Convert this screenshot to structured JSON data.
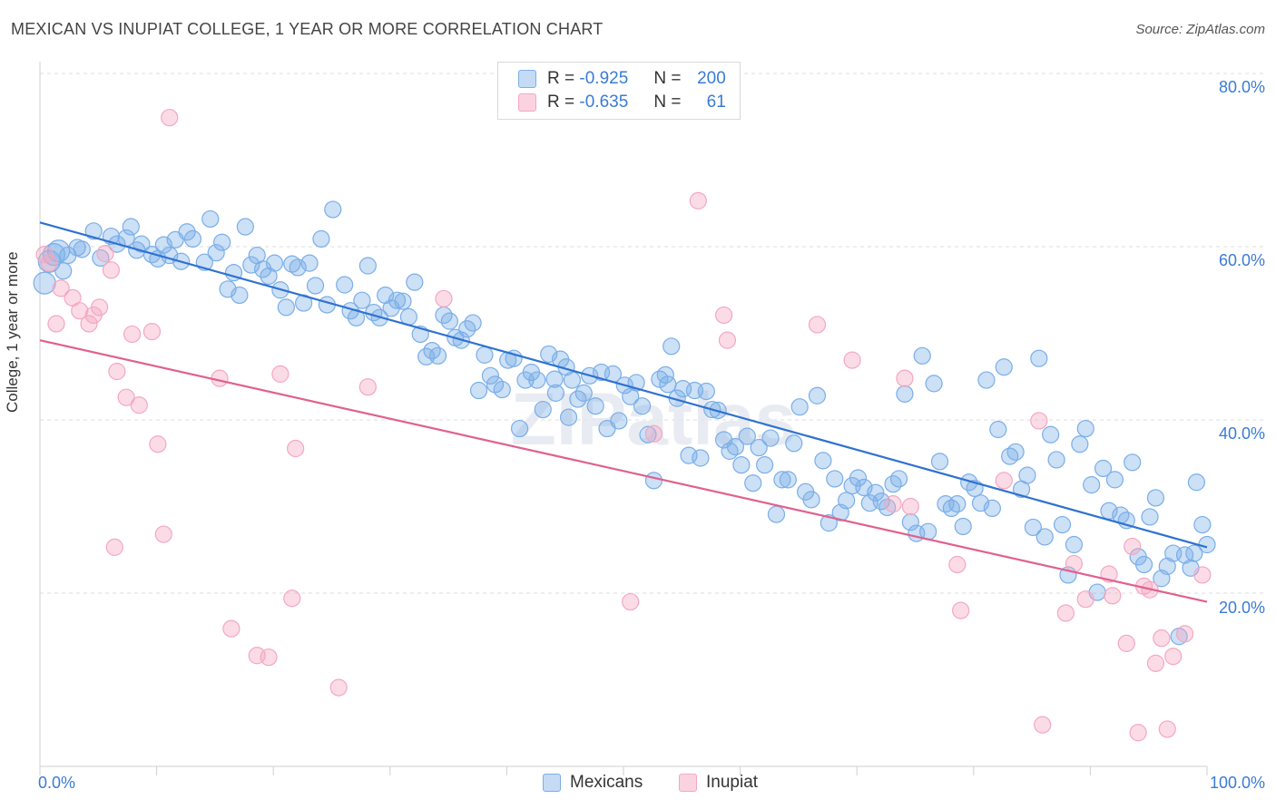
{
  "title": "MEXICAN VS INUPIAT COLLEGE, 1 YEAR OR MORE CORRELATION CHART",
  "source": "Source: ZipAtlas.com",
  "watermark": "ZIPatlas",
  "legend": {
    "mexicans": {
      "r_label": "R =",
      "r_value": "-0.925",
      "n_label": "N =",
      "n_value": "200"
    },
    "inupiat": {
      "r_label": "R =",
      "r_value": "-0.635",
      "n_label": "N =",
      "n_value": "61"
    }
  },
  "bottom_legend": {
    "mexicans": "Mexicans",
    "inupiat": "Inupiat"
  },
  "chart_data": {
    "type": "scatter",
    "title": "MEXICAN VS INUPIAT COLLEGE, 1 YEAR OR MORE CORRELATION CHART",
    "xlabel": "",
    "ylabel": "College, 1 year or more",
    "xlim": [
      0,
      100
    ],
    "ylim": [
      0,
      82
    ],
    "x_tick_labels": [
      "0.0%",
      "100.0%"
    ],
    "y_ticks": [
      20,
      40,
      60,
      80
    ],
    "y_tick_labels": [
      "20.0%",
      "40.0%",
      "60.0%",
      "80.0%"
    ],
    "grid": true,
    "colors": {
      "mexicans": "#7aaee8",
      "mexicans_line": "#2f72d0",
      "inupiat": "#f4a7c0",
      "inupiat_line": "#e0608f"
    },
    "series": [
      {
        "name": "Mexicans",
        "trend": {
          "x": [
            0,
            100
          ],
          "y": [
            62.8,
            25.3
          ]
        },
        "points": [
          [
            0.4,
            55.8
          ],
          [
            0.8,
            58.3
          ],
          [
            1.2,
            59.1
          ],
          [
            1.6,
            59.5
          ],
          [
            2.0,
            57.2
          ],
          [
            2.4,
            59.0
          ],
          [
            3.2,
            59.9
          ],
          [
            3.6,
            59.7
          ],
          [
            4.6,
            61.8
          ],
          [
            5.2,
            58.7
          ],
          [
            6.1,
            61.2
          ],
          [
            6.6,
            60.3
          ],
          [
            7.4,
            61.0
          ],
          [
            7.8,
            62.3
          ],
          [
            8.3,
            59.6
          ],
          [
            8.7,
            60.3
          ],
          [
            9.6,
            59.1
          ],
          [
            10.1,
            58.6
          ],
          [
            10.6,
            60.2
          ],
          [
            11.1,
            59.0
          ],
          [
            11.6,
            60.8
          ],
          [
            12.1,
            58.3
          ],
          [
            12.6,
            61.7
          ],
          [
            13.1,
            60.9
          ],
          [
            14.1,
            58.2
          ],
          [
            14.6,
            63.2
          ],
          [
            15.1,
            59.3
          ],
          [
            15.6,
            60.5
          ],
          [
            16.1,
            55.1
          ],
          [
            16.6,
            57.0
          ],
          [
            17.1,
            54.4
          ],
          [
            17.6,
            62.3
          ],
          [
            18.1,
            57.9
          ],
          [
            18.6,
            59.0
          ],
          [
            19.1,
            57.4
          ],
          [
            19.6,
            56.6
          ],
          [
            20.1,
            58.1
          ],
          [
            20.6,
            55.0
          ],
          [
            21.1,
            53.0
          ],
          [
            21.6,
            58.0
          ],
          [
            22.1,
            57.6
          ],
          [
            22.6,
            53.5
          ],
          [
            23.1,
            58.1
          ],
          [
            23.6,
            55.5
          ],
          [
            24.1,
            60.9
          ],
          [
            25.1,
            64.3
          ],
          [
            24.6,
            53.3
          ],
          [
            26.1,
            55.6
          ],
          [
            26.6,
            52.6
          ],
          [
            27.1,
            51.8
          ],
          [
            27.6,
            53.8
          ],
          [
            28.1,
            57.8
          ],
          [
            28.6,
            52.4
          ],
          [
            29.1,
            51.8
          ],
          [
            29.6,
            54.4
          ],
          [
            30.1,
            52.9
          ],
          [
            30.6,
            53.8
          ],
          [
            31.1,
            53.7
          ],
          [
            31.6,
            51.9
          ],
          [
            32.1,
            55.9
          ],
          [
            32.6,
            49.9
          ],
          [
            33.1,
            47.3
          ],
          [
            33.6,
            48.0
          ],
          [
            34.1,
            47.4
          ],
          [
            34.6,
            52.1
          ],
          [
            35.1,
            51.4
          ],
          [
            35.6,
            49.5
          ],
          [
            36.1,
            49.2
          ],
          [
            36.6,
            50.5
          ],
          [
            37.1,
            51.2
          ],
          [
            37.6,
            43.4
          ],
          [
            38.1,
            47.5
          ],
          [
            38.6,
            45.1
          ],
          [
            39.6,
            43.5
          ],
          [
            40.1,
            46.9
          ],
          [
            40.6,
            47.1
          ],
          [
            41.1,
            39.0
          ],
          [
            41.6,
            44.6
          ],
          [
            42.1,
            45.5
          ],
          [
            42.6,
            44.6
          ],
          [
            43.1,
            41.2
          ],
          [
            43.6,
            47.6
          ],
          [
            44.1,
            44.7
          ],
          [
            44.6,
            47.0
          ],
          [
            45.1,
            46.1
          ],
          [
            45.6,
            44.6
          ],
          [
            46.1,
            42.4
          ],
          [
            46.6,
            43.1
          ],
          [
            47.1,
            45.1
          ],
          [
            47.6,
            41.6
          ],
          [
            48.1,
            45.5
          ],
          [
            48.6,
            39.0
          ],
          [
            49.1,
            45.3
          ],
          [
            49.6,
            39.9
          ],
          [
            50.1,
            44.0
          ],
          [
            50.6,
            42.7
          ],
          [
            51.1,
            44.3
          ],
          [
            51.6,
            41.6
          ],
          [
            52.1,
            38.3
          ],
          [
            52.6,
            33.0
          ],
          [
            53.1,
            44.7
          ],
          [
            53.6,
            45.2
          ],
          [
            54.1,
            48.5
          ],
          [
            54.6,
            42.5
          ],
          [
            55.1,
            43.6
          ],
          [
            55.6,
            35.9
          ],
          [
            56.1,
            43.4
          ],
          [
            56.6,
            35.6
          ],
          [
            57.1,
            43.3
          ],
          [
            57.6,
            41.2
          ],
          [
            58.1,
            41.1
          ],
          [
            58.6,
            37.7
          ],
          [
            59.1,
            36.4
          ],
          [
            59.6,
            36.9
          ],
          [
            60.1,
            34.8
          ],
          [
            60.6,
            38.1
          ],
          [
            61.1,
            32.7
          ],
          [
            61.6,
            36.8
          ],
          [
            62.1,
            34.8
          ],
          [
            62.6,
            37.9
          ],
          [
            63.1,
            29.1
          ],
          [
            63.6,
            33.1
          ],
          [
            64.1,
            33.1
          ],
          [
            64.6,
            37.3
          ],
          [
            65.1,
            41.5
          ],
          [
            65.6,
            31.7
          ],
          [
            66.1,
            30.8
          ],
          [
            66.6,
            42.8
          ],
          [
            67.1,
            35.3
          ],
          [
            67.6,
            28.1
          ],
          [
            68.1,
            33.2
          ],
          [
            68.6,
            29.3
          ],
          [
            69.1,
            30.7
          ],
          [
            69.6,
            32.4
          ],
          [
            70.1,
            33.3
          ],
          [
            70.6,
            32.2
          ],
          [
            71.1,
            30.4
          ],
          [
            71.6,
            31.6
          ],
          [
            72.1,
            30.6
          ],
          [
            72.6,
            29.9
          ],
          [
            73.1,
            32.6
          ],
          [
            73.6,
            33.2
          ],
          [
            74.1,
            43.0
          ],
          [
            74.6,
            28.2
          ],
          [
            75.1,
            26.9
          ],
          [
            75.6,
            47.4
          ],
          [
            76.1,
            27.1
          ],
          [
            76.6,
            44.2
          ],
          [
            77.1,
            35.2
          ],
          [
            77.6,
            30.3
          ],
          [
            78.1,
            29.8
          ],
          [
            78.6,
            30.3
          ],
          [
            79.1,
            27.7
          ],
          [
            79.6,
            32.8
          ],
          [
            80.1,
            32.1
          ],
          [
            80.6,
            30.4
          ],
          [
            81.1,
            44.6
          ],
          [
            81.6,
            29.8
          ],
          [
            82.1,
            38.9
          ],
          [
            82.6,
            46.1
          ],
          [
            83.1,
            35.8
          ],
          [
            83.6,
            36.3
          ],
          [
            84.1,
            32.0
          ],
          [
            84.6,
            33.6
          ],
          [
            85.1,
            27.6
          ],
          [
            85.6,
            47.1
          ],
          [
            86.1,
            26.5
          ],
          [
            86.6,
            38.3
          ],
          [
            87.1,
            35.4
          ],
          [
            87.6,
            27.9
          ],
          [
            88.1,
            22.1
          ],
          [
            88.6,
            25.6
          ],
          [
            89.1,
            37.2
          ],
          [
            89.6,
            39.0
          ],
          [
            90.1,
            32.5
          ],
          [
            90.6,
            20.1
          ],
          [
            91.1,
            34.4
          ],
          [
            91.6,
            29.5
          ],
          [
            92.1,
            33.1
          ],
          [
            92.6,
            29.0
          ],
          [
            93.1,
            28.4
          ],
          [
            93.6,
            35.1
          ],
          [
            94.1,
            24.2
          ],
          [
            94.6,
            23.3
          ],
          [
            95.1,
            28.8
          ],
          [
            95.6,
            31.0
          ],
          [
            96.1,
            21.7
          ],
          [
            96.6,
            23.1
          ],
          [
            97.1,
            24.6
          ],
          [
            97.6,
            15.0
          ],
          [
            98.1,
            24.4
          ],
          [
            98.6,
            22.9
          ],
          [
            99.1,
            32.8
          ],
          [
            99.6,
            27.9
          ],
          [
            100.0,
            25.6
          ],
          [
            98.9,
            24.6
          ],
          [
            44.2,
            43.1
          ],
          [
            45.3,
            40.3
          ],
          [
            53.8,
            44.1
          ],
          [
            39.0,
            44.1
          ]
        ]
      },
      {
        "name": "Inupiat",
        "trend": {
          "x": [
            0,
            100
          ],
          "y": [
            49.2,
            19.0
          ]
        },
        "points": [
          [
            0.4,
            59.1
          ],
          [
            0.8,
            58.1
          ],
          [
            1.4,
            51.1
          ],
          [
            1.8,
            55.2
          ],
          [
            2.8,
            54.1
          ],
          [
            3.4,
            52.6
          ],
          [
            4.2,
            51.1
          ],
          [
            4.6,
            52.1
          ],
          [
            5.1,
            53.0
          ],
          [
            5.6,
            59.2
          ],
          [
            6.1,
            57.3
          ],
          [
            6.4,
            25.3
          ],
          [
            6.6,
            45.6
          ],
          [
            7.4,
            42.6
          ],
          [
            7.9,
            49.9
          ],
          [
            8.5,
            41.7
          ],
          [
            9.6,
            50.2
          ],
          [
            10.1,
            37.2
          ],
          [
            10.6,
            26.8
          ],
          [
            11.1,
            74.9
          ],
          [
            15.4,
            44.8
          ],
          [
            16.4,
            15.9
          ],
          [
            18.6,
            12.8
          ],
          [
            19.6,
            12.6
          ],
          [
            20.6,
            45.3
          ],
          [
            21.6,
            19.4
          ],
          [
            21.9,
            36.7
          ],
          [
            25.6,
            9.1
          ],
          [
            28.1,
            43.8
          ],
          [
            34.6,
            54.0
          ],
          [
            50.6,
            19.0
          ],
          [
            52.6,
            38.4
          ],
          [
            56.4,
            65.3
          ],
          [
            58.6,
            52.1
          ],
          [
            58.9,
            49.2
          ],
          [
            66.6,
            51.0
          ],
          [
            69.6,
            46.9
          ],
          [
            73.1,
            30.3
          ],
          [
            74.1,
            44.8
          ],
          [
            74.6,
            30.0
          ],
          [
            78.6,
            23.3
          ],
          [
            78.9,
            18.0
          ],
          [
            82.6,
            33.0
          ],
          [
            85.6,
            39.9
          ],
          [
            85.9,
            4.8
          ],
          [
            87.9,
            17.7
          ],
          [
            88.6,
            23.4
          ],
          [
            89.6,
            19.3
          ],
          [
            91.6,
            22.2
          ],
          [
            91.9,
            19.7
          ],
          [
            93.1,
            14.2
          ],
          [
            93.6,
            25.4
          ],
          [
            94.1,
            3.9
          ],
          [
            94.6,
            20.8
          ],
          [
            95.1,
            20.4
          ],
          [
            95.6,
            11.9
          ],
          [
            96.1,
            14.8
          ],
          [
            96.6,
            4.3
          ],
          [
            97.1,
            12.7
          ],
          [
            98.1,
            15.3
          ],
          [
            99.6,
            22.1
          ]
        ]
      }
    ]
  }
}
